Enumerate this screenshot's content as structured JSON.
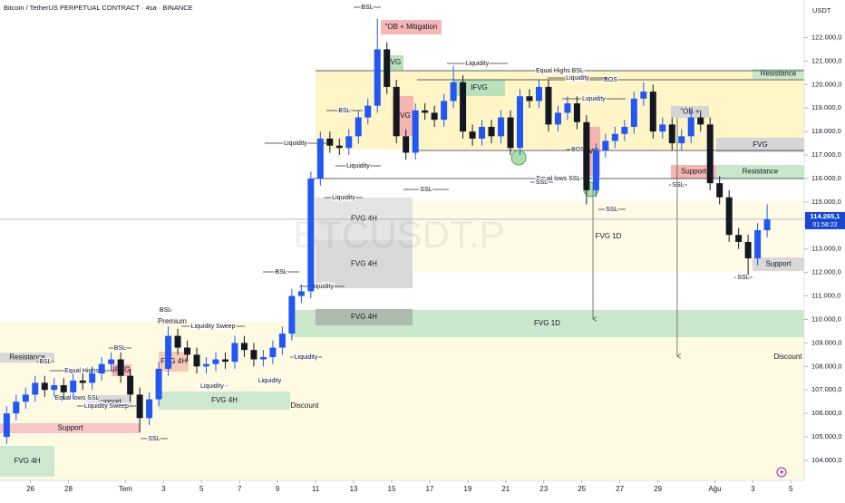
{
  "chart_data": {
    "type": "candlestick",
    "title": "Bitcoin / TetherUS PERPETUAL CONTRACT · 4sa · BINANCE",
    "watermark": "BTCUSDT.P",
    "currency": "USDT",
    "up_color": "#2157f3",
    "down_color": "#131722",
    "grid": false,
    "xlim": [
      -1.6,
      40.7
    ],
    "ylim": [
      103150,
      123600
    ],
    "xticks": [
      {
        "value": 0,
        "label": "26"
      },
      {
        "value": 2,
        "label": "28"
      },
      {
        "value": 5,
        "label": "Tem"
      },
      {
        "value": 7,
        "label": "3"
      },
      {
        "value": 9,
        "label": "5"
      },
      {
        "value": 11,
        "label": "7"
      },
      {
        "value": 13,
        "label": "9"
      },
      {
        "value": 15,
        "label": "11"
      },
      {
        "value": 17,
        "label": "13"
      },
      {
        "value": 19,
        "label": "15"
      },
      {
        "value": 21,
        "label": "17"
      },
      {
        "value": 23,
        "label": "19"
      },
      {
        "value": 25,
        "label": "21"
      },
      {
        "value": 27,
        "label": "23"
      },
      {
        "value": 29,
        "label": "25"
      },
      {
        "value": 31,
        "label": "27"
      },
      {
        "value": 33,
        "label": "29"
      },
      {
        "value": 36,
        "label": "Ağu"
      },
      {
        "value": 38,
        "label": "3"
      },
      {
        "value": 40,
        "label": "5"
      }
    ],
    "yticks": [
      {
        "value": 104000,
        "label": "104.000,0"
      },
      {
        "value": 105000,
        "label": "105.000,0"
      },
      {
        "value": 106000,
        "label": "106.000,0"
      },
      {
        "value": 107000,
        "label": "107.000,0"
      },
      {
        "value": 108000,
        "label": "108.000,0"
      },
      {
        "value": 109000,
        "label": "109.000,0"
      },
      {
        "value": 110000,
        "label": "110.000,0"
      },
      {
        "value": 111000,
        "label": "111.000,0"
      },
      {
        "value": 112000,
        "label": "112.000,0"
      },
      {
        "value": 113000,
        "label": "113.000,0"
      },
      {
        "value": 114000,
        "label": "114.000,0"
      },
      {
        "value": 115000,
        "label": "115.000,0"
      },
      {
        "value": 116000,
        "label": "116.000,0"
      },
      {
        "value": 117000,
        "label": "117.000,0"
      },
      {
        "value": 118000,
        "label": "118.000,0"
      },
      {
        "value": 119000,
        "label": "119.000,0"
      },
      {
        "value": 120000,
        "label": "120.000,0"
      },
      {
        "value": 121000,
        "label": "121.000,0"
      },
      {
        "value": 122000,
        "label": "122.000,0"
      }
    ],
    "x": [
      -1.25,
      -0.75,
      -0.25,
      0.25,
      0.75,
      1.25,
      1.75,
      2.25,
      2.75,
      3.25,
      3.75,
      4.25,
      4.75,
      5.25,
      5.75,
      6.25,
      6.75,
      7.25,
      7.75,
      8.25,
      8.75,
      9.25,
      9.75,
      10.25,
      10.75,
      11.25,
      11.75,
      12.25,
      12.75,
      13.25,
      13.75,
      14.25,
      14.75,
      15.25,
      15.75,
      16.25,
      16.75,
      17.25,
      17.75,
      18.25,
      18.75,
      19.25,
      19.75,
      20.25,
      20.75,
      21.25,
      21.75,
      22.25,
      22.75,
      23.25,
      23.75,
      24.25,
      24.75,
      25.25,
      25.75,
      26.25,
      26.75,
      27.25,
      27.75,
      28.25,
      28.75,
      29.25,
      29.75,
      30.25,
      30.75,
      31.25,
      31.75,
      32.25,
      32.75,
      33.25,
      33.75,
      34.25,
      34.75,
      35.25,
      35.75,
      36.25,
      36.75,
      37.25,
      37.75,
      38.25,
      38.75
    ],
    "open": [
      105000,
      106000,
      106500,
      106800,
      107300,
      107000,
      107200,
      106900,
      107400,
      107300,
      107700,
      108100,
      108300,
      107600,
      106800,
      105800,
      106600,
      107900,
      109300,
      108800,
      108500,
      108000,
      108100,
      108300,
      108200,
      109000,
      108700,
      108300,
      108400,
      108800,
      109400,
      111000,
      111200,
      116000,
      117700,
      117400,
      117300,
      117800,
      118600,
      119100,
      121500,
      119900,
      117800,
      117100,
      118900,
      118800,
      118500,
      119300,
      120100,
      118000,
      117700,
      118200,
      117800,
      118600,
      117300,
      119500,
      119300,
      119900,
      118300,
      118800,
      119200,
      118400,
      115500,
      117200,
      117600,
      117900,
      118200,
      119400,
      119700,
      118000,
      118300,
      117500,
      117800,
      118600,
      118300,
      115800,
      115200,
      113600,
      113300,
      112600,
      113800
    ],
    "high": [
      106300,
      106800,
      107100,
      107600,
      107600,
      107500,
      107500,
      107700,
      107700,
      108000,
      108400,
      108600,
      108600,
      107900,
      107100,
      106900,
      108200,
      109700,
      109600,
      109100,
      108800,
      108400,
      108600,
      108600,
      109300,
      109300,
      109000,
      108700,
      109100,
      109700,
      111300,
      111500,
      116300,
      118000,
      118000,
      117700,
      118100,
      118900,
      119400,
      122800,
      121800,
      120200,
      118100,
      119200,
      119200,
      119100,
      119600,
      120800,
      120400,
      118300,
      118500,
      118500,
      118900,
      118900,
      119800,
      119800,
      120200,
      120200,
      119100,
      119500,
      119500,
      118700,
      117500,
      117900,
      118200,
      118500,
      119700,
      120100,
      120000,
      118600,
      118600,
      118100,
      118900,
      118900,
      118600,
      116100,
      115500,
      113900,
      113600,
      114100,
      114900
    ],
    "low": [
      104700,
      105700,
      106200,
      106500,
      106700,
      106700,
      106600,
      106600,
      107000,
      107000,
      107400,
      107800,
      107300,
      106500,
      105200,
      105500,
      106300,
      107600,
      108500,
      108200,
      107700,
      107700,
      107800,
      107900,
      107900,
      108400,
      108000,
      108000,
      108100,
      108500,
      109100,
      110700,
      110900,
      115700,
      117100,
      117000,
      117000,
      117500,
      118300,
      118800,
      119600,
      117500,
      116800,
      116800,
      118500,
      118200,
      118200,
      119000,
      117700,
      117400,
      117400,
      117500,
      117500,
      117000,
      117000,
      119000,
      119000,
      118000,
      118000,
      118500,
      118100,
      114900,
      115200,
      116900,
      117300,
      117600,
      117900,
      119100,
      117700,
      117700,
      117200,
      117200,
      117500,
      118000,
      115500,
      114900,
      113300,
      113000,
      111900,
      112300,
      113500
    ],
    "close": [
      106000,
      106500,
      106800,
      107300,
      107000,
      107200,
      106900,
      107400,
      107300,
      107700,
      108100,
      108300,
      107600,
      106800,
      105800,
      106600,
      107900,
      109300,
      108800,
      108500,
      108000,
      108100,
      108300,
      108200,
      109000,
      108700,
      108300,
      108400,
      108800,
      109400,
      111000,
      111200,
      116000,
      117700,
      117400,
      117300,
      117800,
      118600,
      119100,
      121500,
      119900,
      117800,
      117100,
      118900,
      118800,
      118500,
      119300,
      120100,
      118000,
      117700,
      118200,
      117800,
      118600,
      117300,
      119500,
      119300,
      119900,
      118300,
      118800,
      119200,
      118400,
      115500,
      117200,
      117600,
      117900,
      118200,
      119400,
      119700,
      118000,
      118300,
      117500,
      117800,
      118600,
      118300,
      115800,
      115200,
      113600,
      113300,
      112600,
      113800,
      114265.1
    ],
    "last_price": {
      "value": 114265.1,
      "label": "114.265,1",
      "color": "#1848cc"
    },
    "countdown": "01:58:22",
    "zones": [
      {
        "x": [
          -1.6,
          40.7
        ],
        "y": [
          103150,
          109902
        ],
        "color": "#fffbe2"
      },
      {
        "x": [
          14.99,
          40.7
        ],
        "y": [
          117234,
          120590
        ],
        "color": "#fff5c6"
      },
      {
        "label": "FVG 1D",
        "x": [
          20.1,
          40.7
        ],
        "y": [
          112024,
          115034
        ],
        "color": "#fffbe6"
      },
      {
        "label": "FVG 4H",
        "x": [
          14.99,
          20.1
        ],
        "y": [
          113375,
          115189
        ],
        "color": "#e4e4e4"
      },
      {
        "label": "FVG 4H",
        "x": [
          14.99,
          20.1
        ],
        "y": [
          111330,
          113375
        ],
        "color": "#d9d9d9"
      },
      {
        "label": "FVG 1D",
        "x": [
          13.66,
          40.7
        ],
        "y": [
          109246,
          110404
        ],
        "color": "#cbe8cd"
      },
      {
        "label": "FVG 4H",
        "x": [
          14.99,
          20.1
        ],
        "y": [
          109748,
          110443
        ],
        "color": "#adbcaf"
      },
      {
        "label": "FVG 4H",
        "x": [
          6.75,
          13.66
        ],
        "y": [
          106160,
          106931
        ],
        "color": "#cde8cf"
      },
      {
        "label": "FVG 4H",
        "x": [
          -1.6,
          1.26
        ],
        "y": [
          103304,
          104616
        ],
        "color": "#cde8cf"
      },
      {
        "label": "Support",
        "x": [
          -1.6,
          5.79
        ],
        "y": [
          105156,
          105581
        ],
        "color": "#f7c6c6"
      },
      {
        "label": "Resistance",
        "x": [
          -1.6,
          1.26
        ],
        "y": [
          108166,
          108590
        ],
        "color": "#d9d9d9"
      },
      {
        "label": "Support",
        "x": [
          2.93,
          5.31
        ],
        "y": [
          106198,
          106777
        ],
        "color": "#d9d9d9"
      },
      {
        "label": "FVG 4H",
        "x": [
          6.75,
          8.32
        ],
        "y": [
          107780,
          108629
        ],
        "color": "#f9c9b8"
      },
      {
        "label": "IFVG",
        "x": [
          4.27,
          5.31
        ],
        "y": [
          107587,
          108089
        ],
        "color": "#f7b6b6"
      },
      {
        "label": "\"OB + Mitigation",
        "x": [
          18.43,
          21.62
        ],
        "y": [
          122134,
          122751
        ],
        "color": "#f7b6b6"
      },
      {
        "label": "FVG",
        "x": [
          18.57,
          19.62
        ],
        "y": [
          120629,
          121246
        ],
        "color": "#b9e0bb"
      },
      {
        "label": "FVG",
        "x": [
          19.05,
          20.15
        ],
        "y": [
          117812,
          119510
        ],
        "color": "#f5b5b0"
      },
      {
        "label": "IFVG",
        "x": [
          22.24,
          24.96
        ],
        "y": [
          119510,
          120205
        ],
        "color": "#b9e0bb"
      },
      {
        "label": "FVG",
        "x": [
          29.06,
          29.97
        ],
        "y": [
          116076,
          118198
        ],
        "color": "#f5b5b0"
      },
      {
        "label": "\"OB +",
        "x": [
          33.69,
          35.69
        ],
        "y": [
          118584,
          119086
        ],
        "color": "#d6d6d6"
      },
      {
        "label": "Support",
        "x": [
          33.69,
          36.07
        ],
        "y": [
          115999,
          116578
        ],
        "color": "#f5b5b0"
      },
      {
        "label": "FVG",
        "x": [
          36.07,
          40.7
        ],
        "y": [
          117118,
          117735
        ],
        "color": "#d6d6d6"
      },
      {
        "label": "Resistance",
        "x": [
          36.07,
          40.7
        ],
        "y": [
          115999,
          116578
        ],
        "color": "#c9e7cb"
      },
      {
        "label": "Resistance",
        "x": [
          37.98,
          40.7
        ],
        "y": [
          120243,
          120667
        ],
        "color": "#c9e7cb"
      },
      {
        "label": "Support",
        "x": [
          37.98,
          40.7
        ],
        "y": [
          112063,
          112642
        ],
        "color": "#d9d9d9"
      }
    ],
    "lines": [
      {
        "label": "BSL",
        "x": [
          17.0,
          18.43
        ],
        "y": 123291
      },
      {
        "label": "Equal Highs BSL",
        "x": [
          14.99,
          40.7
        ],
        "y": 120590
      },
      {
        "label": "BOS",
        "x": [
          20.34,
          40.7
        ],
        "y": 120205
      },
      {
        "label": "Liquidity",
        "x": [
          21.91,
          25.1
        ],
        "y": 120899
      },
      {
        "label": "Liquidity",
        "x": [
          27.2,
          30.35
        ],
        "y": 120282
      },
      {
        "label": "Liquidity",
        "x": [
          27.97,
          31.3
        ],
        "y": 119394
      },
      {
        "label": "BSL",
        "x": [
          15.57,
          17.47
        ],
        "y": 118893
      },
      {
        "label": "Liquidity",
        "x": [
          12.32,
          15.57
        ],
        "y": 117504
      },
      {
        "label": "Liquidity",
        "x": [
          16.04,
          18.43
        ],
        "y": 116539
      },
      {
        "label": "Equal lows SSL",
        "x": [
          14.85,
          40.7
        ],
        "y": 115999
      },
      {
        "x": [
          20.1,
          40.7
        ],
        "y": 117195
      },
      {
        "label": "BOS",
        "x": [
          28.2,
          29.4
        ],
        "y": 117234
      },
      {
        "label": "SSL",
        "x": [
          19.62,
          22.01
        ],
        "y": 115536
      },
      {
        "label": "SSL",
        "x": [
          26.3,
          27.49
        ],
        "y": 115844
      },
      {
        "label": "SSL",
        "x": [
          29.87,
          31.3
        ],
        "y": 114687
      },
      {
        "label": "SSL",
        "x": [
          33.59,
          34.55
        ],
        "y": 115729
      },
      {
        "label": "SSL",
        "x": [
          37.03,
          37.98
        ],
        "y": 111793
      },
      {
        "label": "Liquidity",
        "x": [
          15.47,
          17.47
        ],
        "y": 115189
      },
      {
        "label": "BSL",
        "x": [
          12.23,
          14.14
        ],
        "y": 112024
      },
      {
        "label": "Liquidity",
        "x": [
          14.14,
          16.52
        ],
        "y": 111407
      },
      {
        "label": "Liquidity",
        "x": [
          13.66,
          15.33
        ],
        "y": 108397
      },
      {
        "label": "Liquidity Sweep",
        "x": [
          7.94,
          11.28
        ],
        "y": 109709
      },
      {
        "label": "BSL",
        "x": [
          4.12,
          5.31
        ],
        "y": 108783
      },
      {
        "label": "BSL",
        "x": [
          0.31,
          1.26
        ],
        "y": 108204
      },
      {
        "label": "Equal Highs",
        "x": [
          1.02,
          4.36
        ],
        "y": 107819
      },
      {
        "label": "Equal lows SSL",
        "x": [
          1.26,
          3.65
        ],
        "y": 106661
      },
      {
        "label": "Liquidity Sweep",
        "x": [
          2.45,
          5.55
        ],
        "y": 106314
      },
      {
        "label": "SSL",
        "x": [
          5.79,
          7.22
        ],
        "y": 104925
      },
      {
        "label": "BSL",
        "x": [
          6.75,
          7.46
        ],
        "y": 110404
      },
      {
        "label": "Liquidity -",
        "x": [
          8.99,
          10.32
        ],
        "y": 107163
      },
      {
        "label": "Liquidity",
        "x": [
          11.99,
          13.18
        ],
        "y": 107394
      }
    ],
    "texts": [
      {
        "text": "Premium",
        "x": 7.46,
        "y": 109902
      },
      {
        "text": "Discount",
        "x": 14.42,
        "y": 106314
      },
      {
        "text": "Discount",
        "x": 39.84,
        "y": 108397
      }
    ],
    "arrows": [
      {
        "x": 29.59,
        "y": [
          115844,
          110018
        ]
      },
      {
        "x": 34.02,
        "y": [
          118584,
          108436
        ]
      }
    ],
    "circles": [
      {
        "x": 25.68,
        "y": 116886,
        "color": "#4caf50"
      },
      {
        "x": 29.49,
        "y": 115536,
        "color": "#4caf50"
      }
    ]
  }
}
